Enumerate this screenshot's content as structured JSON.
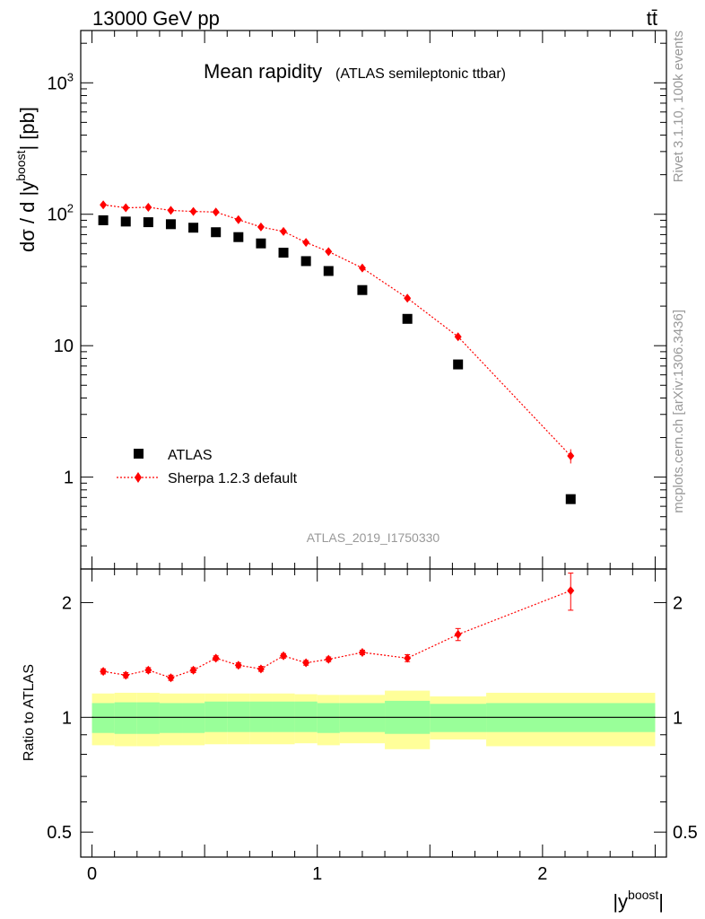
{
  "header": {
    "left": "13000 GeV pp",
    "right": "tt̄"
  },
  "side_labels": {
    "rivet": "Rivet 3.1.10,  100k events",
    "mcplots": "mcplots.cern.ch [arXiv:1306.3436]"
  },
  "chart_data": [
    {
      "type": "scatter",
      "title": "Mean rapidity",
      "subtitle": "(ATLAS semileptonic ttbar)",
      "analysis_id": "ATLAS_2019_I1750330",
      "ylabel": {
        "main": "dσ / d |y",
        "sup": "boost",
        "tail": "| [pb]"
      },
      "yscale": "log",
      "ylim": [
        0.2,
        2500
      ],
      "xlim": [
        -0.05,
        2.55
      ],
      "y_ticks": [
        {
          "value": 1,
          "label": "1",
          "exp": ""
        },
        {
          "value": 10,
          "label": "10",
          "exp": ""
        },
        {
          "value": 100,
          "label": "10",
          "exp": "2"
        },
        {
          "value": 1000,
          "label": "10",
          "exp": "3"
        }
      ],
      "legend_position": "lower-left",
      "legend": {
        "atlas": "ATLAS",
        "sherpa": "Sherpa 1.2.3 default"
      },
      "x_edges": [
        0,
        0.1,
        0.2,
        0.3,
        0.4,
        0.5,
        0.6,
        0.7,
        0.8,
        0.9,
        1.0,
        1.1,
        1.3,
        1.5,
        1.75,
        2.5
      ],
      "x": [
        0.05,
        0.15,
        0.25,
        0.35,
        0.45,
        0.55,
        0.65,
        0.75,
        0.85,
        0.95,
        1.05,
        1.2,
        1.4,
        1.625,
        2.125
      ],
      "series": [
        {
          "name": "ATLAS",
          "color": "#000000",
          "values": [
            90,
            88,
            87,
            84,
            79,
            73,
            67,
            60,
            51,
            44,
            37,
            26.5,
            16,
            7.2,
            0.68
          ]
        },
        {
          "name": "Sherpa 1.2.3 default",
          "color": "#ff0000",
          "values": [
            118,
            112,
            113,
            107,
            105,
            104,
            91,
            80,
            74,
            61,
            52,
            39,
            23,
            11.7,
            1.45
          ],
          "errors": [
            3,
            3,
            3,
            3,
            3,
            3,
            2.5,
            2,
            2,
            2,
            1.5,
            1.5,
            1,
            0.7,
            0.18
          ]
        }
      ]
    },
    {
      "type": "scatter",
      "ylabel": "Ratio to ATLAS",
      "xlabel": {
        "main": "|y",
        "sup": "boost",
        "tail": "|"
      },
      "yscale": "log",
      "ylim": [
        0.43,
        2.45
      ],
      "xlim": [
        -0.05,
        2.55
      ],
      "y_ticks": [
        {
          "value": 0.5,
          "label": "0.5"
        },
        {
          "value": 1,
          "label": "1"
        },
        {
          "value": 2,
          "label": "2"
        }
      ],
      "x_ticks": [
        {
          "value": 0,
          "label": "0"
        },
        {
          "value": 1,
          "label": "1"
        },
        {
          "value": 2,
          "label": "2"
        }
      ],
      "bands": {
        "green_color": "#99ff99",
        "yellow_color": "#ffff99",
        "green": [
          [
            0.91,
            1.09
          ],
          [
            0.905,
            1.095
          ],
          [
            0.905,
            1.095
          ],
          [
            0.91,
            1.09
          ],
          [
            0.91,
            1.09
          ],
          [
            0.915,
            1.1
          ],
          [
            0.915,
            1.1
          ],
          [
            0.915,
            1.1
          ],
          [
            0.915,
            1.1
          ],
          [
            0.915,
            1.1
          ],
          [
            0.91,
            1.09
          ],
          [
            0.915,
            1.09
          ],
          [
            0.905,
            1.105
          ],
          [
            0.915,
            1.085
          ],
          [
            0.915,
            1.09
          ]
        ],
        "yellow": [
          [
            0.845,
            1.155
          ],
          [
            0.84,
            1.16
          ],
          [
            0.84,
            1.16
          ],
          [
            0.845,
            1.155
          ],
          [
            0.845,
            1.155
          ],
          [
            0.85,
            1.155
          ],
          [
            0.85,
            1.155
          ],
          [
            0.85,
            1.155
          ],
          [
            0.85,
            1.155
          ],
          [
            0.855,
            1.15
          ],
          [
            0.845,
            1.145
          ],
          [
            0.855,
            1.145
          ],
          [
            0.825,
            1.175
          ],
          [
            0.875,
            1.135
          ],
          [
            0.84,
            1.16
          ]
        ]
      },
      "ratio": {
        "values": [
          1.32,
          1.29,
          1.33,
          1.27,
          1.33,
          1.43,
          1.37,
          1.34,
          1.45,
          1.39,
          1.42,
          1.48,
          1.43,
          1.65,
          2.15
        ],
        "errors": [
          0.02,
          0.02,
          0.02,
          0.02,
          0.02,
          0.02,
          0.02,
          0.02,
          0.02,
          0.02,
          0.02,
          0.02,
          0.03,
          0.06,
          0.24
        ]
      }
    }
  ]
}
